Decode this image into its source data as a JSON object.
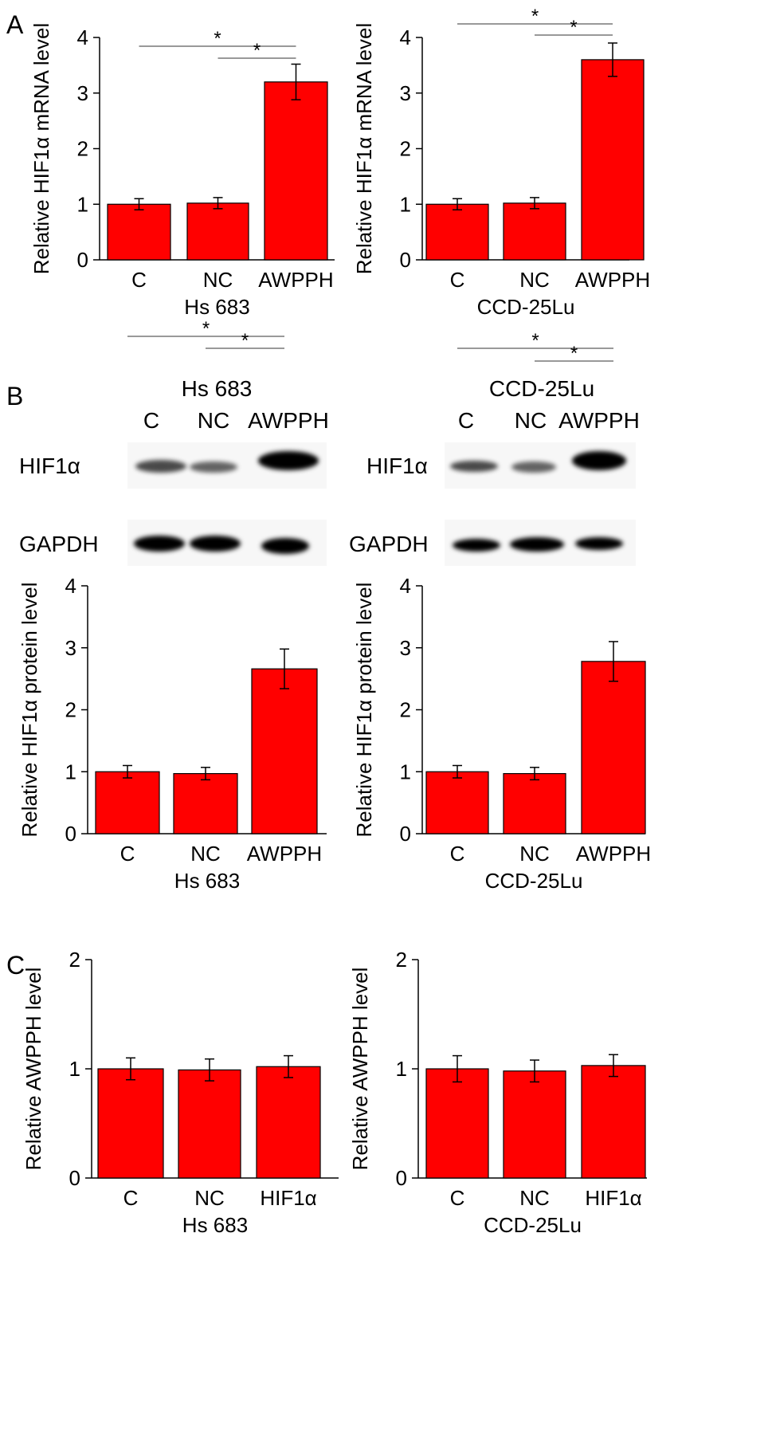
{
  "panels": {
    "a": "A",
    "b": "B",
    "c": "C"
  },
  "colors": {
    "bar": "#ff0000",
    "bar_edge": "#000000",
    "sig_line": "#999999",
    "axis": "#000000"
  },
  "blots": [
    {
      "title": "Hs 683",
      "lanes": [
        "C",
        "NC",
        "AWPPH"
      ],
      "rows": [
        {
          "label": "HIF1α",
          "intensity": [
            0.7,
            0.6,
            1.0
          ]
        },
        {
          "label": "GAPDH",
          "intensity": [
            1.0,
            1.0,
            1.0
          ]
        }
      ]
    },
    {
      "title": "CCD-25Lu",
      "lanes": [
        "C",
        "NC",
        "AWPPH"
      ],
      "rows": [
        {
          "label": "HIF1α",
          "intensity": [
            0.7,
            0.6,
            1.0
          ]
        },
        {
          "label": "GAPDH",
          "intensity": [
            1.0,
            1.0,
            1.0
          ]
        }
      ]
    }
  ],
  "chart_data": [
    {
      "type": "bar",
      "categories": [
        "C",
        "NC",
        "AWPPH"
      ],
      "values": [
        1.0,
        1.02,
        3.2
      ],
      "errors": [
        0.1,
        0.1,
        0.32
      ],
      "ylabel": "Relative HIF1α mRNA level",
      "xlabel": "Hs 683",
      "ylim": [
        0,
        4
      ],
      "yticks": [
        "0",
        "1",
        "2",
        "3",
        "4"
      ],
      "significance": [
        {
          "from": "C",
          "to": "AWPPH",
          "label": "*"
        },
        {
          "from": "NC",
          "to": "AWPPH",
          "label": "*"
        }
      ]
    },
    {
      "type": "bar",
      "categories": [
        "C",
        "NC",
        "AWPPH"
      ],
      "values": [
        1.0,
        1.02,
        3.6
      ],
      "errors": [
        0.1,
        0.1,
        0.3
      ],
      "ylabel": "Relative HIF1α mRNA level",
      "xlabel": "CCD-25Lu",
      "ylim": [
        0,
        4
      ],
      "yticks": [
        "0",
        "1",
        "2",
        "3",
        "4"
      ],
      "significance": [
        {
          "from": "C",
          "to": "AWPPH",
          "label": "*"
        },
        {
          "from": "NC",
          "to": "AWPPH",
          "label": "*"
        }
      ]
    },
    {
      "type": "bar",
      "categories": [
        "C",
        "NC",
        "AWPPH"
      ],
      "values": [
        1.0,
        0.97,
        2.66
      ],
      "errors": [
        0.1,
        0.1,
        0.32
      ],
      "ylabel": "Relative HIF1α protein level",
      "xlabel": "Hs 683",
      "ylim": [
        0,
        4
      ],
      "yticks": [
        "0",
        "1",
        "2",
        "3",
        "4"
      ],
      "significance": [
        {
          "from": "C",
          "to": "AWPPH",
          "label": "*"
        },
        {
          "from": "NC",
          "to": "AWPPH",
          "label": "*"
        }
      ]
    },
    {
      "type": "bar",
      "categories": [
        "C",
        "NC",
        "AWPPH"
      ],
      "values": [
        1.0,
        0.97,
        2.78
      ],
      "errors": [
        0.1,
        0.1,
        0.32
      ],
      "ylabel": "Relative HIF1α protein level",
      "xlabel": "CCD-25Lu",
      "ylim": [
        0,
        4
      ],
      "yticks": [
        "0",
        "1",
        "2",
        "3",
        "4"
      ],
      "significance": [
        {
          "from": "C",
          "to": "AWPPH",
          "label": "*"
        },
        {
          "from": "NC",
          "to": "AWPPH",
          "label": "*"
        }
      ]
    },
    {
      "type": "bar",
      "categories": [
        "C",
        "NC",
        "HIF1α"
      ],
      "values": [
        1.0,
        0.99,
        1.02
      ],
      "errors": [
        0.1,
        0.1,
        0.1
      ],
      "ylabel": "Relative AWPPH level",
      "xlabel": "Hs 683",
      "ylim": [
        0,
        2
      ],
      "yticks": [
        "0",
        "1",
        "2"
      ],
      "significance": []
    },
    {
      "type": "bar",
      "categories": [
        "C",
        "NC",
        "HIF1α"
      ],
      "values": [
        1.0,
        0.98,
        1.03
      ],
      "errors": [
        0.12,
        0.1,
        0.1
      ],
      "ylabel": "Relative AWPPH level",
      "xlabel": "CCD-25Lu",
      "ylim": [
        0,
        2
      ],
      "yticks": [
        "0",
        "1",
        "2"
      ],
      "significance": []
    }
  ]
}
